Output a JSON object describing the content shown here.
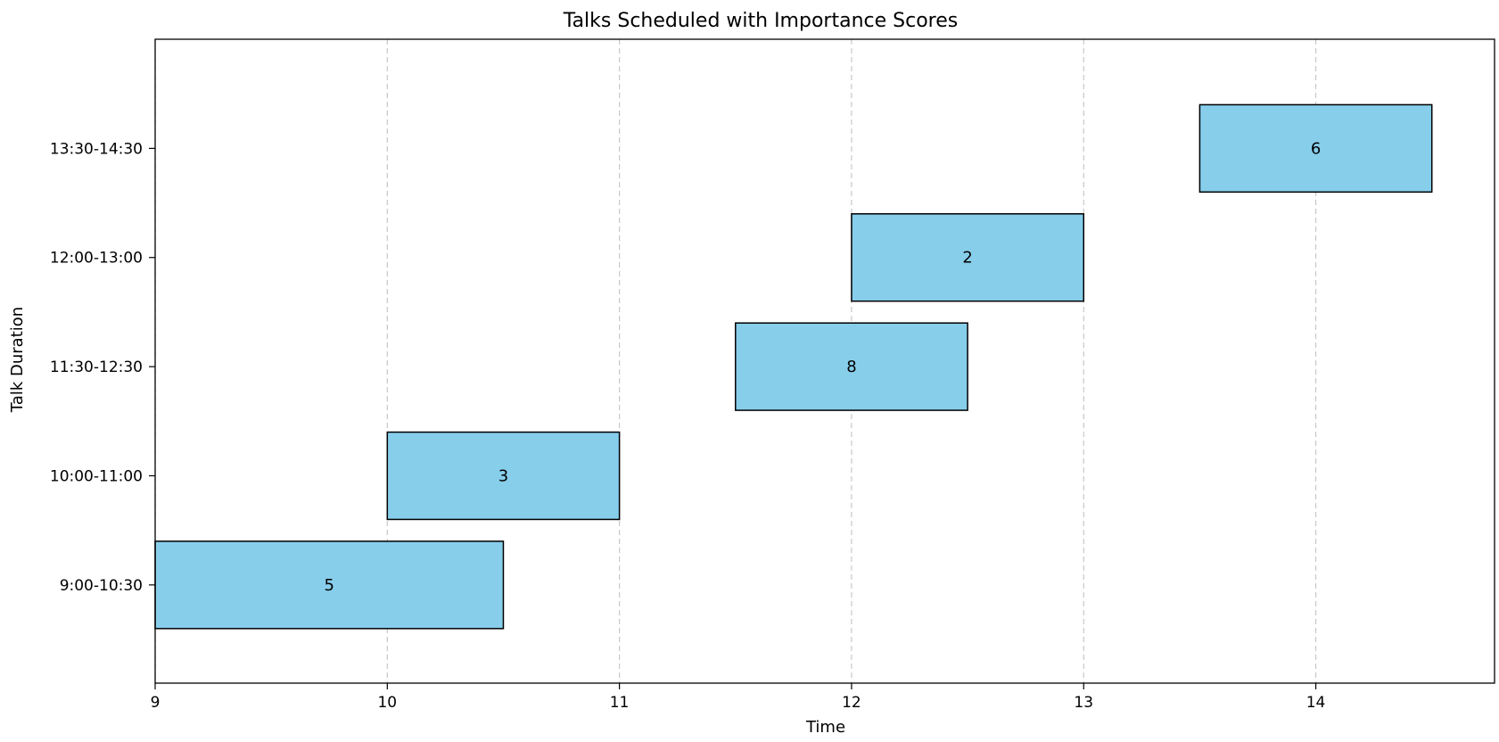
{
  "chart_data": {
    "type": "bar",
    "orientation": "horizontal-gantt",
    "title": "Talks Scheduled with Importance Scores",
    "xlabel": "Time",
    "ylabel": "Talk Duration",
    "xlim": [
      9,
      14.77
    ],
    "xticks": [
      9,
      10,
      11,
      12,
      13,
      14
    ],
    "categories": [
      "9:00-10:30",
      "10:00-11:00",
      "11:30-12:30",
      "12:00-13:00",
      "13:30-14:30"
    ],
    "bars": [
      {
        "category": "9:00-10:30",
        "start": 9.0,
        "end": 10.5,
        "score": "5"
      },
      {
        "category": "10:00-11:00",
        "start": 10.0,
        "end": 11.0,
        "score": "3"
      },
      {
        "category": "11:30-12:30",
        "start": 11.5,
        "end": 12.5,
        "score": "8"
      },
      {
        "category": "12:00-13:00",
        "start": 12.0,
        "end": 13.0,
        "score": "2"
      },
      {
        "category": "13:30-14:30",
        "start": 13.5,
        "end": 14.5,
        "score": "6"
      }
    ],
    "grid": {
      "x": true,
      "y": false,
      "style": "dashed"
    },
    "bar_color": "#87ceeb",
    "bar_edge_color": "#000000",
    "grid_color": "#c8c8c8"
  }
}
